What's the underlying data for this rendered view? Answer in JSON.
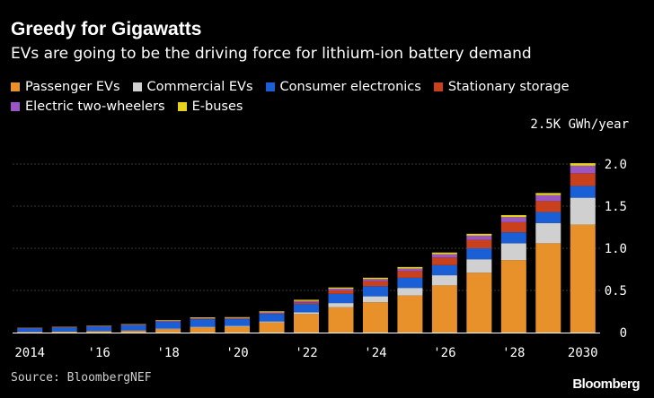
{
  "title": "Greedy for Gigawatts",
  "subtitle": "EVs are going to be the driving force for lithium-ion battery demand",
  "unit_label": "2.5K GWh/year",
  "source": "Source: BloombergNEF",
  "brand": "Bloomberg",
  "legend": [
    {
      "name": "Passenger EVs",
      "color": "#e8912a"
    },
    {
      "name": "Commercial EVs",
      "color": "#d0d0d0"
    },
    {
      "name": "Consumer electronics",
      "color": "#1a5fd6"
    },
    {
      "name": "Stationary storage",
      "color": "#c8401c"
    },
    {
      "name": "Electric two-wheelers",
      "color": "#9a56c2"
    },
    {
      "name": "E-buses",
      "color": "#e6d11f"
    }
  ],
  "chart_data": {
    "type": "bar",
    "stacked": true,
    "categories": [
      "2014",
      "2015",
      "2016",
      "2017",
      "2018",
      "2019",
      "2020",
      "2021",
      "2022",
      "2023",
      "2024",
      "2025",
      "2026",
      "2027",
      "2028",
      "2029",
      "2030"
    ],
    "x_tick_labels": [
      "2014",
      "",
      "'16",
      "",
      "'18",
      "",
      "'20",
      "",
      "'22",
      "",
      "'24",
      "",
      "'26",
      "",
      "'28",
      "",
      "2030"
    ],
    "ylim": [
      0,
      2.0
    ],
    "y_ticks": [
      0,
      0.5,
      1.0,
      1.5,
      2.0
    ],
    "y_tick_labels": [
      "0",
      "0.5",
      "1.0",
      "1.5",
      "2.0"
    ],
    "grid": true,
    "series": [
      {
        "name": "Passenger EVs",
        "color": "#e8912a",
        "values": [
          0.005,
          0.01,
          0.015,
          0.02,
          0.04,
          0.06,
          0.07,
          0.12,
          0.22,
          0.3,
          0.36,
          0.44,
          0.56,
          0.71,
          0.86,
          1.06,
          1.28
        ]
      },
      {
        "name": "Commercial EVs",
        "color": "#d0d0d0",
        "values": [
          0.003,
          0.003,
          0.004,
          0.005,
          0.007,
          0.008,
          0.009,
          0.012,
          0.02,
          0.05,
          0.07,
          0.09,
          0.12,
          0.16,
          0.2,
          0.24,
          0.32
        ]
      },
      {
        "name": "Consumer electronics",
        "color": "#1a5fd6",
        "values": [
          0.04,
          0.045,
          0.05,
          0.06,
          0.08,
          0.09,
          0.08,
          0.09,
          0.1,
          0.11,
          0.12,
          0.12,
          0.12,
          0.13,
          0.13,
          0.13,
          0.14
        ]
      },
      {
        "name": "Stationary storage",
        "color": "#c8401c",
        "values": [
          0.001,
          0.001,
          0.001,
          0.002,
          0.003,
          0.003,
          0.004,
          0.006,
          0.02,
          0.04,
          0.06,
          0.08,
          0.09,
          0.1,
          0.12,
          0.13,
          0.15
        ]
      },
      {
        "name": "Electric two-wheelers",
        "color": "#9a56c2",
        "values": [
          0.005,
          0.005,
          0.006,
          0.007,
          0.008,
          0.009,
          0.01,
          0.012,
          0.015,
          0.02,
          0.025,
          0.03,
          0.04,
          0.05,
          0.06,
          0.07,
          0.09
        ]
      },
      {
        "name": "E-buses",
        "color": "#e6d11f",
        "values": [
          0.003,
          0.004,
          0.005,
          0.006,
          0.008,
          0.01,
          0.01,
          0.012,
          0.014,
          0.015,
          0.016,
          0.018,
          0.02,
          0.022,
          0.024,
          0.026,
          0.03
        ]
      }
    ]
  }
}
